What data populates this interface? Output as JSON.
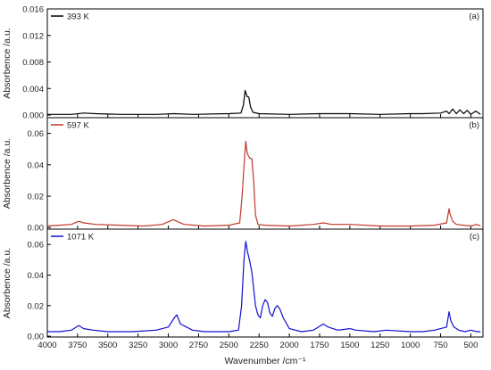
{
  "chart_data": {
    "type": "line",
    "shared_x_axis": {
      "label": "Wavenumber /cm⁻¹",
      "xlim": [
        4000,
        400
      ],
      "reversed": true,
      "ticks": [
        "4000",
        "3750",
        "3500",
        "3250",
        "3000",
        "2750",
        "2500",
        "2250",
        "2000",
        "1750",
        "1500",
        "1250",
        "1000",
        "750",
        "500"
      ],
      "tick_values": [
        4000,
        3750,
        3500,
        3250,
        3000,
        2750,
        2500,
        2250,
        2000,
        1750,
        1500,
        1250,
        1000,
        750,
        500
      ]
    },
    "panels": [
      {
        "panel_label": "(a)",
        "ylabel": "Absorbence /a.u.",
        "ylim": [
          -0.0004,
          0.016
        ],
        "yticks": [
          0.0,
          0.004,
          0.008,
          0.012,
          0.016
        ],
        "ytick_labels": [
          "0.000",
          "0.004",
          "0.008",
          "0.012",
          "0.016"
        ],
        "series": {
          "name": "393 K",
          "color": "#000000",
          "points": [
            [
              4000,
              0.0001
            ],
            [
              3800,
              0.0001
            ],
            [
              3700,
              0.0003
            ],
            [
              3600,
              0.0002
            ],
            [
              3400,
              0.0001
            ],
            [
              3100,
              0.0001
            ],
            [
              2950,
              0.0002
            ],
            [
              2800,
              0.0001
            ],
            [
              2500,
              0.0002
            ],
            [
              2400,
              0.0003
            ],
            [
              2380,
              0.0015
            ],
            [
              2365,
              0.0037
            ],
            [
              2350,
              0.0028
            ],
            [
              2335,
              0.0027
            ],
            [
              2320,
              0.0012
            ],
            [
              2300,
              0.0004
            ],
            [
              2250,
              0.0002
            ],
            [
              2000,
              0.0001
            ],
            [
              1750,
              0.0002
            ],
            [
              1500,
              0.0002
            ],
            [
              1250,
              0.0001
            ],
            [
              1000,
              0.0002
            ],
            [
              900,
              0.0002
            ],
            [
              750,
              0.0003
            ],
            [
              700,
              0.0006
            ],
            [
              680,
              0.0002
            ],
            [
              650,
              0.0009
            ],
            [
              620,
              0.0002
            ],
            [
              590,
              0.0008
            ],
            [
              560,
              0.0002
            ],
            [
              530,
              0.0007
            ],
            [
              500,
              0.0001
            ],
            [
              460,
              0.0006
            ],
            [
              420,
              0.0001
            ]
          ]
        }
      },
      {
        "panel_label": "(b)",
        "ylabel": "Absorbence /a.u.",
        "ylim": [
          -0.001,
          0.07
        ],
        "yticks": [
          0.0,
          0.02,
          0.04,
          0.06
        ],
        "ytick_labels": [
          "0.00",
          "0.02",
          "0.04",
          "0.06"
        ],
        "series": {
          "name": "597 K",
          "color": "#c0392b",
          "points": [
            [
              4000,
              0.001
            ],
            [
              3900,
              0.0015
            ],
            [
              3800,
              0.002
            ],
            [
              3740,
              0.004
            ],
            [
              3700,
              0.003
            ],
            [
              3600,
              0.002
            ],
            [
              3400,
              0.0015
            ],
            [
              3200,
              0.001
            ],
            [
              3050,
              0.002
            ],
            [
              2960,
              0.005
            ],
            [
              2930,
              0.004
            ],
            [
              2870,
              0.002
            ],
            [
              2700,
              0.001
            ],
            [
              2500,
              0.0015
            ],
            [
              2410,
              0.003
            ],
            [
              2390,
              0.02
            ],
            [
              2370,
              0.045
            ],
            [
              2360,
              0.055
            ],
            [
              2350,
              0.048
            ],
            [
              2340,
              0.046
            ],
            [
              2325,
              0.044
            ],
            [
              2310,
              0.044
            ],
            [
              2295,
              0.03
            ],
            [
              2280,
              0.008
            ],
            [
              2260,
              0.002
            ],
            [
              2200,
              0.0015
            ],
            [
              2000,
              0.001
            ],
            [
              1800,
              0.002
            ],
            [
              1720,
              0.003
            ],
            [
              1650,
              0.002
            ],
            [
              1500,
              0.002
            ],
            [
              1250,
              0.001
            ],
            [
              1000,
              0.001
            ],
            [
              800,
              0.0015
            ],
            [
              700,
              0.003
            ],
            [
              680,
              0.012
            ],
            [
              670,
              0.008
            ],
            [
              650,
              0.004
            ],
            [
              620,
              0.002
            ],
            [
              560,
              0.0015
            ],
            [
              500,
              0.001
            ],
            [
              450,
              0.002
            ],
            [
              420,
              0.001
            ]
          ]
        }
      },
      {
        "panel_label": "(c)",
        "ylabel": "Absorbence /a.u.",
        "ylim": [
          -0.0005,
          0.07
        ],
        "yticks": [
          0.0,
          0.02,
          0.04,
          0.06
        ],
        "ytick_labels": [
          "0.00",
          "0.02",
          "0.04",
          "0.06"
        ],
        "series": {
          "name": "1071 K",
          "color": "#1010d0",
          "points": [
            [
              4000,
              0.003
            ],
            [
              3900,
              0.003
            ],
            [
              3800,
              0.004
            ],
            [
              3740,
              0.007
            ],
            [
              3700,
              0.005
            ],
            [
              3620,
              0.004
            ],
            [
              3500,
              0.003
            ],
            [
              3300,
              0.003
            ],
            [
              3100,
              0.004
            ],
            [
              3000,
              0.006
            ],
            [
              2950,
              0.012
            ],
            [
              2930,
              0.014
            ],
            [
              2900,
              0.008
            ],
            [
              2850,
              0.006
            ],
            [
              2800,
              0.004
            ],
            [
              2700,
              0.003
            ],
            [
              2500,
              0.003
            ],
            [
              2420,
              0.004
            ],
            [
              2395,
              0.02
            ],
            [
              2375,
              0.05
            ],
            [
              2360,
              0.062
            ],
            [
              2345,
              0.055
            ],
            [
              2330,
              0.05
            ],
            [
              2310,
              0.042
            ],
            [
              2280,
              0.02
            ],
            [
              2260,
              0.014
            ],
            [
              2240,
              0.012
            ],
            [
              2220,
              0.02
            ],
            [
              2200,
              0.024
            ],
            [
              2180,
              0.022
            ],
            [
              2160,
              0.015
            ],
            [
              2140,
              0.013
            ],
            [
              2120,
              0.018
            ],
            [
              2100,
              0.02
            ],
            [
              2080,
              0.018
            ],
            [
              2050,
              0.012
            ],
            [
              2000,
              0.005
            ],
            [
              1900,
              0.003
            ],
            [
              1800,
              0.004
            ],
            [
              1720,
              0.008
            ],
            [
              1680,
              0.006
            ],
            [
              1600,
              0.004
            ],
            [
              1500,
              0.005
            ],
            [
              1450,
              0.004
            ],
            [
              1300,
              0.003
            ],
            [
              1200,
              0.004
            ],
            [
              1000,
              0.003
            ],
            [
              900,
              0.003
            ],
            [
              800,
              0.004
            ],
            [
              700,
              0.006
            ],
            [
              680,
              0.016
            ],
            [
              665,
              0.01
            ],
            [
              640,
              0.006
            ],
            [
              600,
              0.004
            ],
            [
              550,
              0.003
            ],
            [
              500,
              0.004
            ],
            [
              450,
              0.003
            ],
            [
              420,
              0.003
            ]
          ]
        }
      }
    ]
  }
}
